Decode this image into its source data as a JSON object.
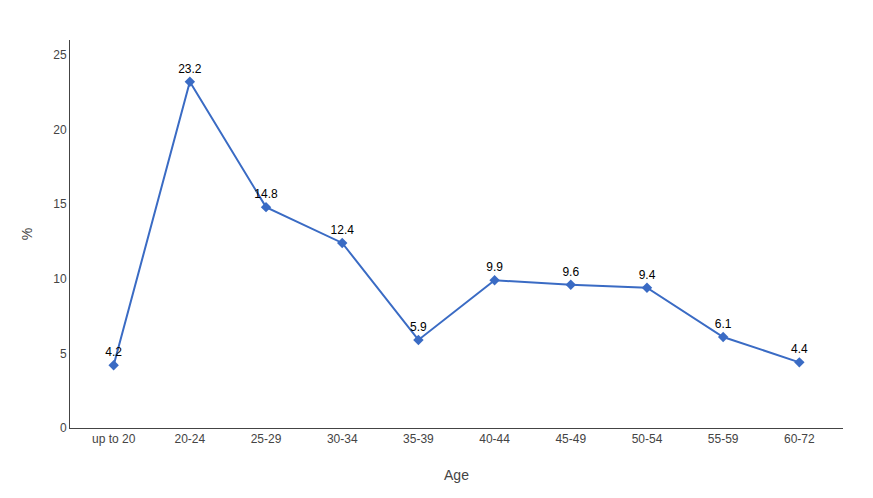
{
  "chart_data": {
    "type": "line",
    "categories": [
      "up to 20",
      "20-24",
      "25-29",
      "30-34",
      "35-39",
      "40-44",
      "45-49",
      "50-54",
      "55-59",
      "60-72"
    ],
    "values": [
      4.2,
      23.2,
      14.8,
      12.4,
      5.9,
      9.9,
      9.6,
      9.4,
      6.1,
      4.4
    ],
    "color": "#3A6BC4",
    "marker": "diamond",
    "xlabel": "Age",
    "ylabel": "%",
    "ylim": [
      0,
      26
    ],
    "yticks": [
      0,
      5,
      10,
      15,
      20,
      25
    ],
    "grid": false,
    "data_labels": true
  }
}
